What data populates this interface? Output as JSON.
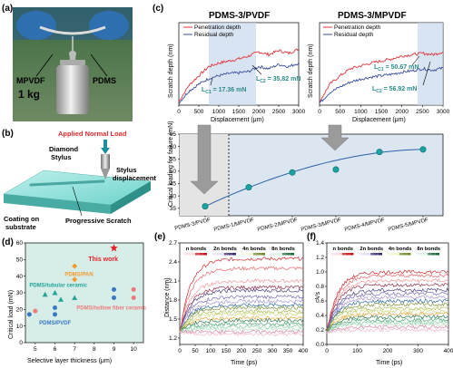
{
  "panels": {
    "a": {
      "label": "(a)",
      "left_tag": "MPVDF",
      "right_tag": "PDMS",
      "weight": "1 kg"
    },
    "b": {
      "label": "(b)",
      "load": "Applied Normal Load",
      "stylus": [
        "Diamond",
        "Stylus"
      ],
      "displacement": [
        "Stylus",
        "displacement"
      ],
      "coating": [
        "Coating on",
        "substrate"
      ],
      "scratch": "Progressive Scratch"
    },
    "c": {
      "label": "(c)",
      "left": {
        "title": "PDMS-3/PVDF",
        "legend": [
          "Penetration depth",
          "Residual depth"
        ],
        "lc2": "L",
        "lc2_sub": "C2",
        "lc2_val": " = 35.82 mN",
        "lc1": "L",
        "lc1_sub": "C1",
        "lc1_val": " = 17.36 mN"
      },
      "right": {
        "title": "PDMS-3/MPVDF",
        "legend": [
          "Penetration depth",
          "Residual depth"
        ],
        "lc1": "L",
        "lc1_sub": "C1",
        "lc1_val": " = 50.67 mN",
        "lc2": "L",
        "lc2_sub": "C2",
        "lc2_val": " = 56.92 mN"
      },
      "ylabel": "Scratch depth (nm)",
      "xlabel": "Displacement (μm)",
      "xticks": [
        "0",
        "500",
        "1000",
        "1500",
        "2000",
        "2500",
        "3000"
      ],
      "bottom_ylabel": "Critical loading for failure (mN)"
    },
    "d": {
      "label": "(d)",
      "ylabel": "Critical load (mN)",
      "xlabel": "Selective layer thickness (μm)",
      "this_work": "This work",
      "groups": [
        "PDMS/PAN",
        "PDMS/tubular ceramic",
        "PDMS/hollow fiber ceramic",
        "PDMS/PVDF"
      ]
    },
    "e": {
      "label": "(e)",
      "ylabel": "Distance (nm)",
      "xlabel": "Time (ps)",
      "bonds": [
        "n bonds",
        "2n bonds",
        "4n bonds",
        "8n bonds"
      ]
    },
    "f": {
      "label": "(f)",
      "ylabel": "Vs",
      "xlabel": "Time (ps)",
      "bonds": [
        "n bonds",
        "2n bonds",
        "4n bonds",
        "8n bonds"
      ]
    }
  },
  "chart_data": [
    {
      "type": "line",
      "title": "PDMS-3/PVDF",
      "xlabel": "Displacement (μm)",
      "ylabel": "Scratch depth (nm)",
      "xlim": [
        0,
        3000
      ],
      "series": [
        {
          "name": "Penetration depth",
          "color": "#e0343a",
          "x": [
            0,
            250,
            500,
            750,
            1000,
            1250,
            1500,
            1750,
            2000,
            2250,
            2500,
            2750,
            3000
          ],
          "y": [
            0.05,
            0.28,
            0.42,
            0.55,
            0.6,
            0.63,
            0.66,
            0.7,
            0.76,
            0.72,
            0.78,
            0.74,
            0.8
          ]
        },
        {
          "name": "Residual depth",
          "color": "#3b4f9e",
          "x": [
            0,
            250,
            500,
            750,
            1000,
            1250,
            1500,
            1750,
            2000,
            2250,
            2500,
            2750,
            3000
          ],
          "y": [
            0.03,
            0.2,
            0.3,
            0.38,
            0.42,
            0.45,
            0.46,
            0.48,
            0.55,
            0.52,
            0.58,
            0.55,
            0.6
          ]
        }
      ]
    },
    {
      "type": "line",
      "title": "PDMS-3/MPVDF",
      "xlabel": "Displacement (μm)",
      "ylabel": "Scratch depth (nm)",
      "xlim": [
        0,
        3000
      ],
      "series": [
        {
          "name": "Penetration depth",
          "color": "#e0343a",
          "x": [
            0,
            250,
            500,
            750,
            1000,
            1250,
            1500,
            1750,
            2000,
            2250,
            2500,
            2750,
            3000
          ],
          "y": [
            0.05,
            0.3,
            0.42,
            0.52,
            0.56,
            0.6,
            0.63,
            0.66,
            0.7,
            0.72,
            0.74,
            0.72,
            0.76
          ]
        },
        {
          "name": "Residual depth",
          "color": "#3b4f9e",
          "x": [
            0,
            250,
            500,
            750,
            1000,
            1250,
            1500,
            1750,
            2000,
            2250,
            2500,
            2750,
            3000
          ],
          "y": [
            0.03,
            0.18,
            0.26,
            0.33,
            0.37,
            0.4,
            0.42,
            0.44,
            0.47,
            0.49,
            0.52,
            0.5,
            0.53
          ]
        }
      ]
    },
    {
      "type": "scatter",
      "ylabel": "Critical loading for failure (mN)",
      "categories": [
        "PDMS-3/PVDF",
        "PDMS-1/MPVDF",
        "PDMS-2/MPVDF",
        "PDMS-3/MPVDF",
        "PDMS-4/MPVDF",
        "PDMS-5/MPVDF"
      ],
      "values": [
        35.8,
        43.5,
        49.5,
        50.7,
        57.8,
        58.8
      ],
      "yticks": [
        35,
        40,
        45,
        50,
        55,
        60,
        65
      ],
      "ylim": [
        32,
        65
      ]
    },
    {
      "type": "scatter",
      "xlabel": "Selective layer thickness (μm)",
      "ylabel": "Critical load (mN)",
      "xlim": [
        4.5,
        10.5
      ],
      "ylim": [
        0,
        60
      ],
      "xticks": [
        5,
        6,
        7,
        8,
        9,
        10
      ],
      "yticks": [
        0,
        10,
        20,
        30,
        40,
        50,
        60
      ],
      "series": [
        {
          "name": "This work",
          "color": "#e8202a",
          "x": [
            9
          ],
          "y": [
            56.9
          ]
        },
        {
          "name": "PDMS/PAN",
          "color": "#f39a2e",
          "x": [
            7,
            7
          ],
          "y": [
            46,
            38
          ]
        },
        {
          "name": "PDMS/tubular ceramic",
          "color": "#23a59a",
          "x": [
            5.5,
            6,
            6.3,
            7
          ],
          "y": [
            29,
            30,
            26,
            27
          ]
        },
        {
          "name": "PDMS/hollow fiber ceramic",
          "color": "#ef7a7a",
          "x": [
            5,
            10,
            10
          ],
          "y": [
            19,
            32,
            27
          ]
        },
        {
          "name": "PDMS/PVDF",
          "color": "#3a78c2",
          "x": [
            4.7,
            6,
            6,
            9,
            9
          ],
          "y": [
            17,
            21,
            17,
            32,
            27
          ]
        }
      ]
    },
    {
      "type": "line",
      "xlabel": "Time (ps)",
      "ylabel": "Distance (nm)",
      "xlim": [
        0,
        400
      ],
      "ylim": [
        1.1,
        2.7
      ],
      "xticks": [
        0,
        50,
        100,
        150,
        200,
        250,
        300,
        350,
        400
      ],
      "yticks": [
        1.2,
        1.5,
        1.8,
        2.1,
        2.4,
        2.7
      ],
      "series_plateaus": [
        2.45,
        2.3,
        2.1,
        2.0,
        1.95,
        1.85,
        1.78,
        1.72,
        1.68,
        1.62,
        1.58,
        1.52,
        1.48,
        1.42,
        1.38,
        1.34,
        1.3,
        1.26
      ]
    },
    {
      "type": "line",
      "xlabel": "Time (ps)",
      "ylabel": "Vs",
      "xlim": [
        0,
        400
      ],
      "ylim": [
        0,
        1.4
      ],
      "xticks": [
        0,
        100,
        200,
        300,
        400
      ],
      "yticks": [
        0.0,
        0.2,
        0.4,
        0.6,
        0.8,
        1.0,
        1.2,
        1.4
      ],
      "series_plateaus": [
        1.0,
        0.95,
        0.88,
        0.82,
        0.75,
        0.7,
        0.65,
        0.6,
        0.55,
        0.5,
        0.46,
        0.42,
        0.38,
        0.34,
        0.3,
        0.28,
        0.24,
        0.2
      ]
    }
  ]
}
